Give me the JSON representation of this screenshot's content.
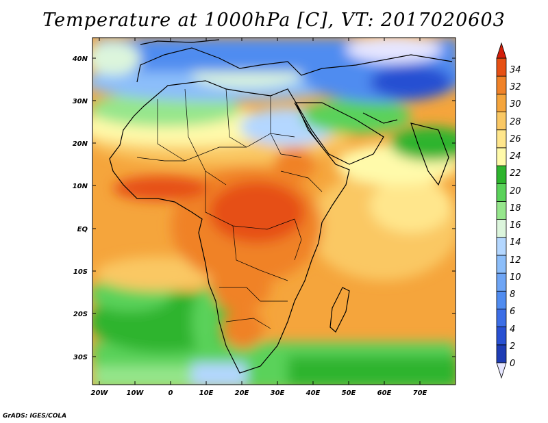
{
  "title": "Temperature at 1000hPa [C], VT: 2017020603",
  "axes": {
    "lat_labels": [
      "40N",
      "30N",
      "20N",
      "10N",
      "EQ",
      "10S",
      "20S",
      "30S"
    ],
    "lon_labels": [
      "20W",
      "10W",
      "0",
      "10E",
      "20E",
      "30E",
      "40E",
      "50E",
      "60E",
      "70E"
    ]
  },
  "colorbar": {
    "labels": [
      "0",
      "2",
      "4",
      "6",
      "8",
      "10",
      "12",
      "14",
      "16",
      "18",
      "20",
      "22",
      "24",
      "26",
      "28",
      "30",
      "32",
      "34"
    ],
    "colors": [
      "#0a0a78",
      "#1e3cb4",
      "#2850d2",
      "#3c6ee6",
      "#508cf0",
      "#6ea5f5",
      "#8cbefa",
      "#b4d7ff",
      "#dcf5dc",
      "#96e68c",
      "#5ad25a",
      "#2db42d",
      "#fffaaa",
      "#ffe68c",
      "#fac864",
      "#f5a53c",
      "#f08228",
      "#e65014",
      "#d21e0a"
    ],
    "under_color": "#e6e6ff",
    "over_color": "#d21e0a"
  },
  "credit": "GrADS: IGES/COLA"
}
